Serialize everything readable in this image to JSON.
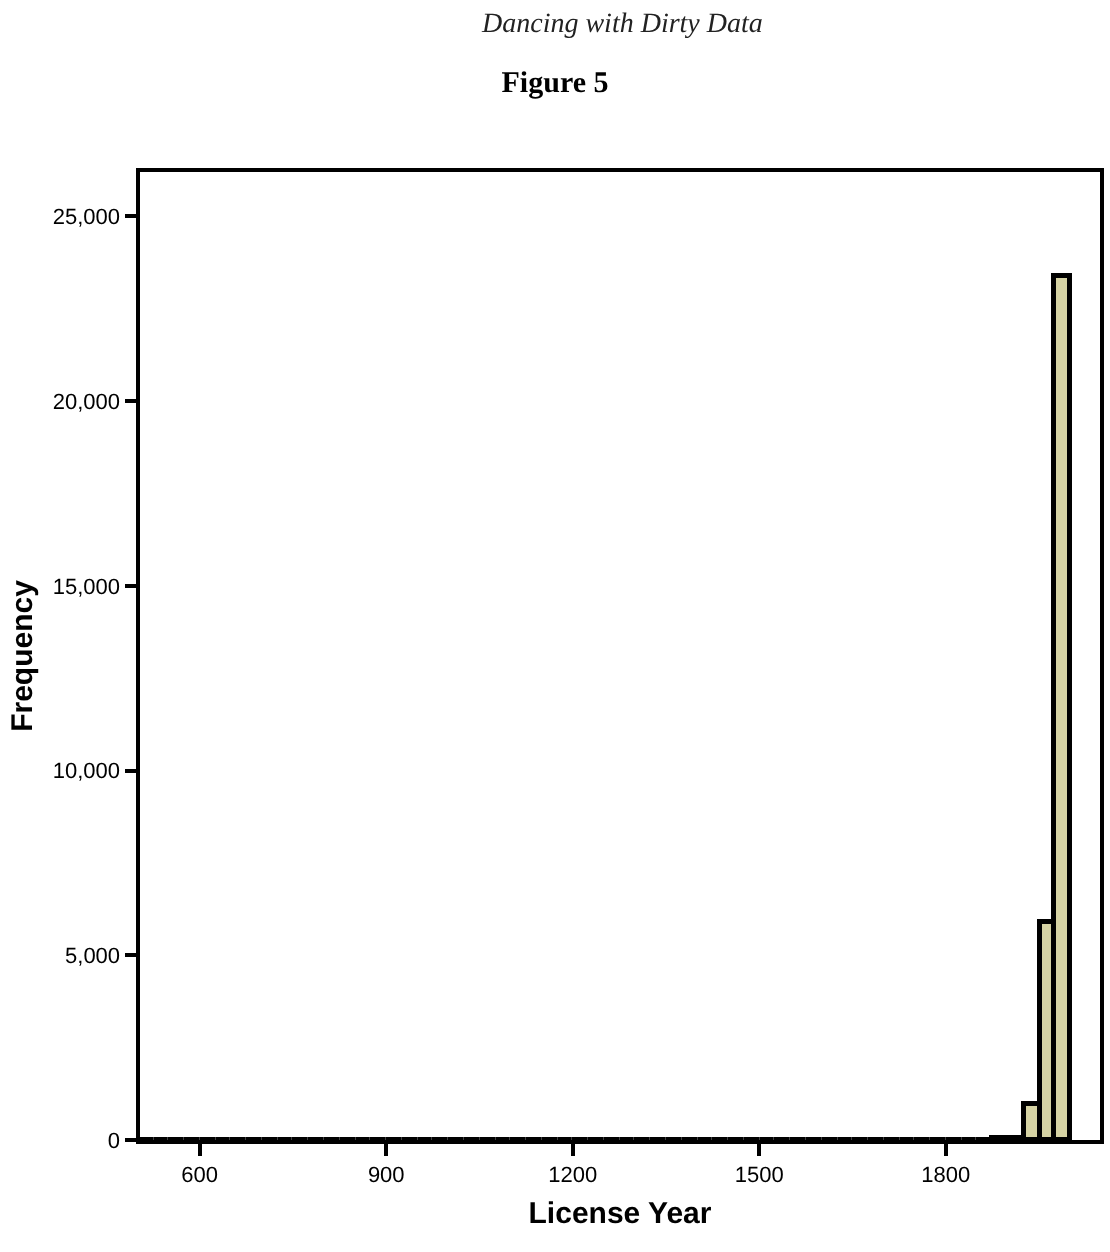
{
  "chart_data": {
    "type": "histogram",
    "title": "Figure 5",
    "annotations": [
      "Dancing with Dirty Data"
    ],
    "xlabel": "License Year",
    "ylabel": "Frequency",
    "bins": [
      500,
      525,
      550,
      575,
      600,
      625,
      650,
      675,
      700,
      725,
      750,
      775,
      800,
      825,
      850,
      875,
      900,
      925,
      950,
      975,
      1000,
      1025,
      1050,
      1075,
      1100,
      1125,
      1150,
      1175,
      1200,
      1225,
      1250,
      1275,
      1300,
      1325,
      1350,
      1375,
      1400,
      1425,
      1450,
      1475,
      1500,
      1525,
      1550,
      1575,
      1600,
      1625,
      1650,
      1675,
      1700,
      1725,
      1750,
      1775,
      1800,
      1825,
      1850,
      1875,
      1900,
      1925,
      1950,
      1975,
      2000
    ],
    "values": [
      0,
      0,
      0,
      0,
      0,
      0,
      0,
      0,
      0,
      0,
      0,
      0,
      0,
      0,
      0,
      0,
      0,
      0,
      0,
      0,
      0,
      0,
      0,
      0,
      0,
      0,
      0,
      0,
      0,
      0,
      0,
      0,
      0,
      0,
      0,
      0,
      0,
      0,
      0,
      0,
      0,
      0,
      0,
      0,
      0,
      0,
      0,
      0,
      0,
      0,
      0,
      0,
      0,
      0,
      20,
      30,
      80,
      1000,
      5900,
      23400
    ],
    "color": "#d6d3a4",
    "xlim": [
      504,
      2048
    ],
    "xticks": [
      600,
      900,
      1200,
      1500,
      1800
    ],
    "ylim": [
      0,
      26200
    ],
    "yticks": [
      {
        "value": 0,
        "label": "0"
      },
      {
        "value": 5000,
        "label": "5,000"
      },
      {
        "value": 10000,
        "label": "10,000"
      },
      {
        "value": 15000,
        "label": "15,000"
      },
      {
        "value": 20000,
        "label": "20,000"
      },
      {
        "value": 25000,
        "label": "25,000"
      }
    ]
  }
}
